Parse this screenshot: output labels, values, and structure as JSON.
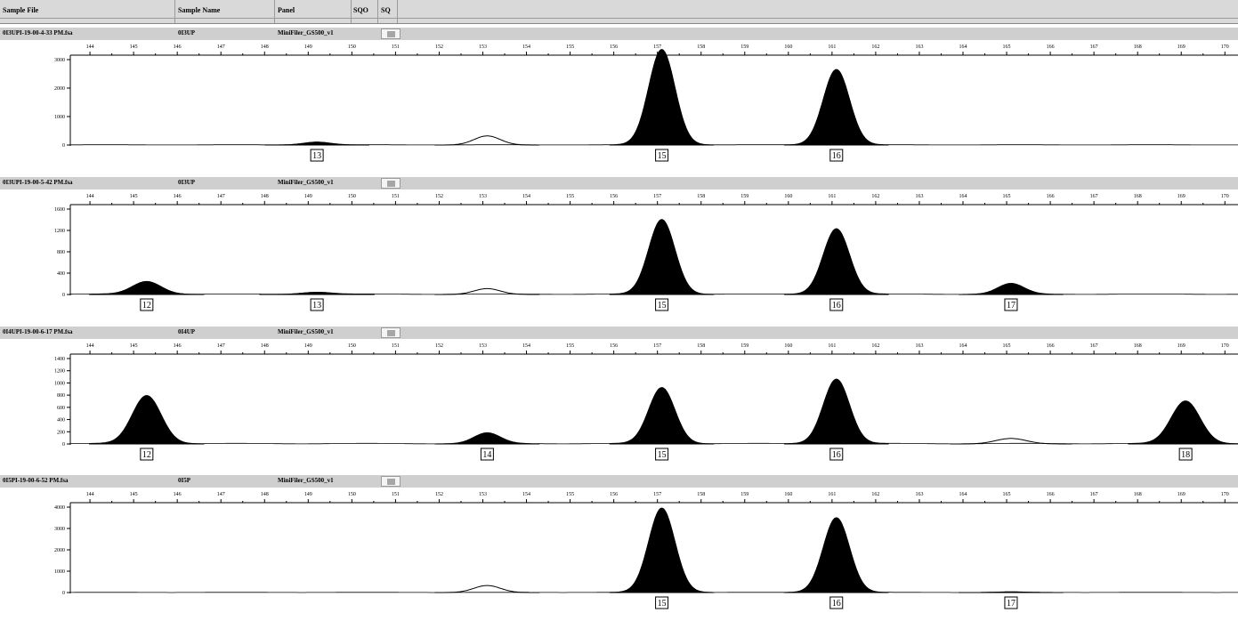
{
  "header": {
    "columns": [
      {
        "key": "sample_file",
        "label": "Sample File"
      },
      {
        "key": "sample_name",
        "label": "Sample Name"
      },
      {
        "key": "panel",
        "label": "Panel"
      },
      {
        "key": "sqo",
        "label": "SQO"
      },
      {
        "key": "sq",
        "label": "SQ"
      }
    ]
  },
  "x_axis": {
    "ticks": [
      "144",
      "145",
      "146",
      "147",
      "148",
      "149",
      "150",
      "151",
      "152",
      "153",
      "154",
      "155",
      "156",
      "157",
      "158",
      "159",
      "160",
      "161",
      "162",
      "163",
      "164",
      "165",
      "166",
      "167",
      "168",
      "169",
      "170"
    ]
  },
  "colors": {
    "header_bg": "#d9d9d9",
    "panel_header_bg": "#cfcfcf",
    "trace": "#000000"
  },
  "panels": [
    {
      "file": "0I3UPI-19-00-4-33 PM.fsa",
      "sample": "0I3UP",
      "panel_name": "MiniFiler_GS500_v1",
      "y_ticks": [
        "3000",
        "2000",
        "1000",
        "0"
      ],
      "peaks": [
        {
          "size": 149.2,
          "height": 100,
          "width": 0.3,
          "filled": true
        },
        {
          "size": 153.1,
          "height": 320,
          "width": 0.3,
          "filled": false
        },
        {
          "size": 157.1,
          "height": 3350,
          "width": 0.3,
          "filled": true
        },
        {
          "size": 161.1,
          "height": 2650,
          "width": 0.3,
          "filled": true
        }
      ],
      "alleles": [
        {
          "size": 149.2,
          "label": "13"
        },
        {
          "size": 157.1,
          "label": "15"
        },
        {
          "size": 161.1,
          "label": "16"
        }
      ]
    },
    {
      "file": "0I3UPI-19-00-5-42 PM.fsa",
      "sample": "0I3UP",
      "panel_name": "MiniFiler_GS500_v1",
      "y_ticks": [
        "1600",
        "1200",
        "800",
        "400",
        "0"
      ],
      "peaks": [
        {
          "size": 145.3,
          "height": 240,
          "width": 0.33,
          "filled": true
        },
        {
          "size": 149.2,
          "height": 40,
          "width": 0.33,
          "filled": true
        },
        {
          "size": 153.1,
          "height": 110,
          "width": 0.3,
          "filled": false
        },
        {
          "size": 157.1,
          "height": 1400,
          "width": 0.3,
          "filled": true
        },
        {
          "size": 161.1,
          "height": 1230,
          "width": 0.3,
          "filled": true
        },
        {
          "size": 165.1,
          "height": 200,
          "width": 0.3,
          "filled": true
        }
      ],
      "alleles": [
        {
          "size": 145.3,
          "label": "12"
        },
        {
          "size": 149.2,
          "label": "13"
        },
        {
          "size": 157.1,
          "label": "15"
        },
        {
          "size": 161.1,
          "label": "16"
        },
        {
          "size": 165.1,
          "label": "17"
        }
      ]
    },
    {
      "file": "0I4UPI-19-00-6-17 PM.fsa",
      "sample": "0I4UP",
      "panel_name": "MiniFiler_GS500_v1",
      "y_ticks": [
        "1400",
        "1200",
        "1000",
        "800",
        "600",
        "400",
        "200",
        "0"
      ],
      "peaks": [
        {
          "size": 145.3,
          "height": 790,
          "width": 0.33,
          "filled": true
        },
        {
          "size": 153.1,
          "height": 175,
          "width": 0.3,
          "filled": true
        },
        {
          "size": 157.1,
          "height": 920,
          "width": 0.3,
          "filled": true
        },
        {
          "size": 161.1,
          "height": 1060,
          "width": 0.3,
          "filled": true
        },
        {
          "size": 165.1,
          "height": 90,
          "width": 0.35,
          "filled": false
        },
        {
          "size": 169.1,
          "height": 700,
          "width": 0.33,
          "filled": true
        }
      ],
      "alleles": [
        {
          "size": 145.3,
          "label": "12"
        },
        {
          "size": 153.1,
          "label": "14"
        },
        {
          "size": 157.1,
          "label": "15"
        },
        {
          "size": 161.1,
          "label": "16"
        },
        {
          "size": 169.1,
          "label": "18"
        }
      ]
    },
    {
      "file": "0I5PI-19-00-6-52 PM.fsa",
      "sample": "0I5P",
      "panel_name": "MiniFiler_GS500_v1",
      "y_ticks": [
        "4000",
        "3000",
        "2000",
        "1000",
        "0"
      ],
      "peaks": [
        {
          "size": 153.1,
          "height": 330,
          "width": 0.3,
          "filled": false
        },
        {
          "size": 157.1,
          "height": 3950,
          "width": 0.3,
          "filled": true
        },
        {
          "size": 161.1,
          "height": 3500,
          "width": 0.3,
          "filled": true
        },
        {
          "size": 165.1,
          "height": 25,
          "width": 0.3,
          "filled": true
        }
      ],
      "alleles": [
        {
          "size": 157.1,
          "label": "15"
        },
        {
          "size": 161.1,
          "label": "16"
        },
        {
          "size": 165.1,
          "label": "17"
        }
      ]
    }
  ]
}
